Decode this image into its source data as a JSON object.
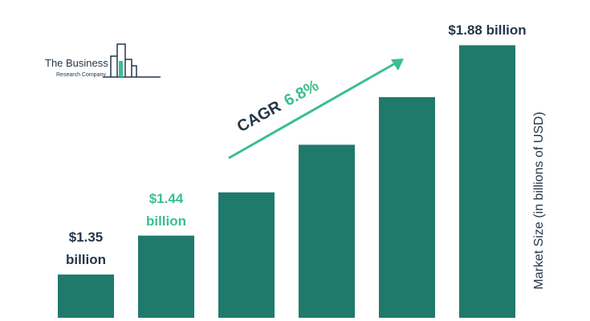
{
  "logo": {
    "line1": "The Business",
    "line2": "Research Company"
  },
  "chart_data": {
    "type": "bar",
    "categories": [
      null,
      null,
      null,
      null,
      null,
      null
    ],
    "values": [
      1.35,
      1.44,
      1.54,
      1.65,
      1.76,
      1.88
    ],
    "value_labels": [
      "$1.35 billion",
      "$1.44 billion",
      null,
      null,
      null,
      "$1.88 billion"
    ],
    "label_colors": [
      "#25364a",
      "#3bbf8c",
      null,
      null,
      null,
      "#25364a"
    ],
    "color": "#1f7a6b",
    "ylim": [
      1.25,
      1.89
    ],
    "ylabel": "Market Size (in billions of USD)",
    "annotation": {
      "text": "CAGR",
      "value": "6.8%",
      "color": "#3bbf8c"
    }
  }
}
